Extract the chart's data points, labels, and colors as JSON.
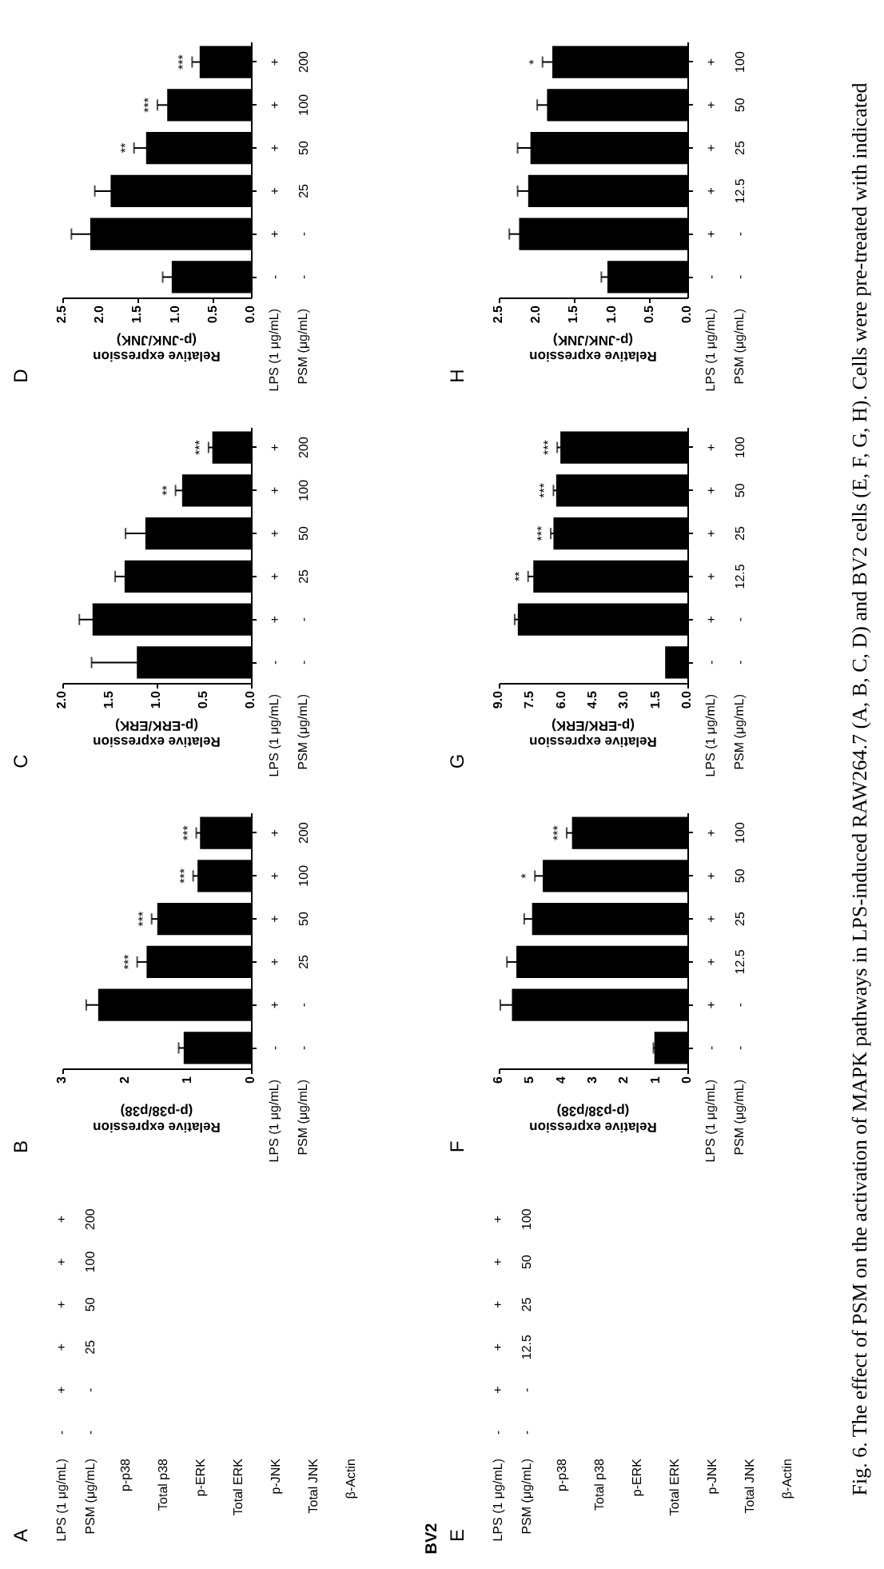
{
  "chart_data": [
    {
      "type": "other",
      "title": "A",
      "categories": [
        "p-p38",
        "Total p38",
        "p-ERK",
        "Total ERK",
        "p-JNK",
        "Total JNK",
        "β-Actin"
      ],
      "y_categories": [
        "+\n200",
        "+\n100",
        "+\n50",
        "+\n25",
        "+\n-",
        "-\n-"
      ],
      "ylabel": "LPS (1 μg/mL)\nPSM (μg/mL)"
    },
    {
      "type": "bar",
      "title": "B",
      "orientation": "horizontal",
      "categories": [
        "+\n200",
        "+\n100",
        "+\n50",
        "+\n25",
        "+\n-",
        "-\n-"
      ],
      "values": [
        0.81,
        0.85,
        1.49,
        1.66,
        2.43,
        1.07
      ],
      "errors": [
        0.06,
        0.07,
        0.09,
        0.15,
        0.19,
        0.08
      ],
      "value_labels": [
        "***",
        "***",
        "***",
        "***",
        null,
        null
      ],
      "color": "#000000",
      "xlim": [
        3,
        0
      ],
      "xticks": [
        0,
        1,
        2,
        3
      ],
      "xlabel": "Relative expression\n(p-p38/p38)",
      "ylabel": "LPS (1 μg/mL)\nPSM (μg/mL)"
    },
    {
      "type": "bar",
      "title": "C",
      "orientation": "horizontal",
      "categories": [
        "+\n200",
        "+\n100",
        "+\n50",
        "+\n25",
        "+\n-",
        "-\n-"
      ],
      "values": [
        0.41,
        0.73,
        1.12,
        1.34,
        1.68,
        1.21
      ],
      "errors": [
        0.04,
        0.07,
        0.21,
        0.1,
        0.14,
        0.48
      ],
      "value_labels": [
        "***",
        "**",
        null,
        null,
        null,
        null
      ],
      "color": "#000000",
      "xlim": [
        2,
        0
      ],
      "xticks": [
        {
          "value": 0,
          "label": "0.0"
        },
        {
          "value": 0.5,
          "label": "0.5"
        },
        {
          "value": 1,
          "label": "1.0"
        },
        {
          "value": 1.5,
          "label": "1.5"
        },
        {
          "value": 2,
          "label": "2.0"
        }
      ],
      "xlabel": "Relative expression\n(p-ERK/ERK)",
      "ylabel": "LPS (1 μg/mL)\nPSM (μg/mL)"
    },
    {
      "type": "bar",
      "title": "D",
      "orientation": "horizontal",
      "categories": [
        "+\n200",
        "+\n100",
        "+\n50",
        "+\n25",
        "+\n-",
        "-\n-"
      ],
      "values": [
        0.68,
        1.11,
        1.39,
        1.86,
        2.13,
        1.05
      ],
      "errors": [
        0.1,
        0.13,
        0.16,
        0.21,
        0.25,
        0.12
      ],
      "value_labels": [
        "***",
        "***",
        "**",
        null,
        null,
        null
      ],
      "color": "#000000",
      "xlim": [
        2.5,
        0
      ],
      "xticks": [
        {
          "value": 0,
          "label": "0.0"
        },
        {
          "value": 0.5,
          "label": "0.5"
        },
        {
          "value": 1,
          "label": "1.0"
        },
        {
          "value": 1.5,
          "label": "1.5"
        },
        {
          "value": 2,
          "label": "2.0"
        },
        {
          "value": 2.5,
          "label": "2.5"
        }
      ],
      "xlabel": "Relative expression\n(p-JNK/JNK)",
      "ylabel": "LPS (1 μg/mL)\nPSM (μg/mL)"
    },
    {
      "type": "other",
      "title": "E",
      "categories": [
        "p-p38",
        "Total p38",
        "p-ERK",
        "Total ERK",
        "p-JNK",
        "Total JNK",
        "β-Actin"
      ],
      "y_categories": [
        "+\n100",
        "+\n50",
        "+\n25",
        "+\n12.5",
        "+\n-",
        "-\n-"
      ],
      "ylabel": "LPS (1 μg/mL)\nPSM (μg/mL)",
      "annotations": [
        "BV2"
      ]
    },
    {
      "type": "bar",
      "title": "F",
      "orientation": "horizontal",
      "categories": [
        "+\n100",
        "+\n50",
        "+\n25",
        "+\n12.5",
        "+\n-",
        "-\n-"
      ],
      "values": [
        3.67,
        4.6,
        4.94,
        5.44,
        5.58,
        1.05
      ],
      "errors": [
        0.17,
        0.25,
        0.25,
        0.3,
        0.37,
        0.03
      ],
      "value_labels": [
        "***",
        "*",
        null,
        null,
        null,
        null
      ],
      "color": "#000000",
      "xlim": [
        6,
        0
      ],
      "xticks": [
        0,
        1,
        2,
        3,
        4,
        5,
        6
      ],
      "xlabel": "Relative expression\n(p-p38/p38)",
      "ylabel": "LPS (1 μg/mL)\nPSM (μg/mL)"
    },
    {
      "type": "bar",
      "title": "G",
      "orientation": "horizontal",
      "categories": [
        "+\n100",
        "+\n50",
        "+\n25",
        "+\n12.5",
        "+\n-",
        "-\n-"
      ],
      "values": [
        6.06,
        6.26,
        6.39,
        7.35,
        8.09,
        1.06
      ],
      "errors": [
        0.15,
        0.13,
        0.13,
        0.25,
        0.15,
        null
      ],
      "value_labels": [
        "***",
        "***",
        "***",
        "**",
        null,
        null
      ],
      "color": "#000000",
      "xlim": [
        9,
        0
      ],
      "xticks": [
        {
          "value": 0,
          "label": "0.0"
        },
        {
          "value": 1.5,
          "label": "1.5"
        },
        {
          "value": 3,
          "label": "3.0"
        },
        {
          "value": 4.5,
          "label": "4.5"
        },
        {
          "value": 6,
          "label": "6.0"
        },
        {
          "value": 7.5,
          "label": "7.5"
        },
        {
          "value": 9,
          "label": "9.0"
        }
      ],
      "xlabel": "Relative expression\n(p-ERK/ERK)",
      "ylabel": "LPS (1 μg/mL)\nPSM (μg/mL)"
    },
    {
      "type": "bar",
      "title": "H",
      "orientation": "horizontal",
      "categories": [
        "+\n100",
        "+\n50",
        "+\n25",
        "+\n12.5",
        "+\n-",
        "-\n-"
      ],
      "values": [
        1.79,
        1.86,
        2.08,
        2.11,
        2.23,
        1.06
      ],
      "errors": [
        0.13,
        0.13,
        0.17,
        0.14,
        0.13,
        0.08
      ],
      "value_labels": [
        "*",
        null,
        null,
        null,
        null,
        null
      ],
      "color": "#000000",
      "xlim": [
        2.5,
        0
      ],
      "xticks": [
        {
          "value": 0,
          "label": "0.0"
        },
        {
          "value": 0.5,
          "label": "0.5"
        },
        {
          "value": 1,
          "label": "1.0"
        },
        {
          "value": 1.5,
          "label": "1.5"
        },
        {
          "value": 2,
          "label": "2.0"
        },
        {
          "value": 2.5,
          "label": "2.5"
        }
      ],
      "xlabel": "Relative expression\n(p-JNK/JNK)",
      "ylabel": "LPS (1 μg/mL)\nPSM (μg/mL)"
    },
    {
      "type": "other",
      "annotations": [
        "Fig. 6. The effect of PSM on the activation of MAPK pathways in LPS-induced RAW264.7 (A, B, C, D) and BV2 cells (E, F, G, H). Cells were pre-treated with indicated"
      ]
    }
  ]
}
